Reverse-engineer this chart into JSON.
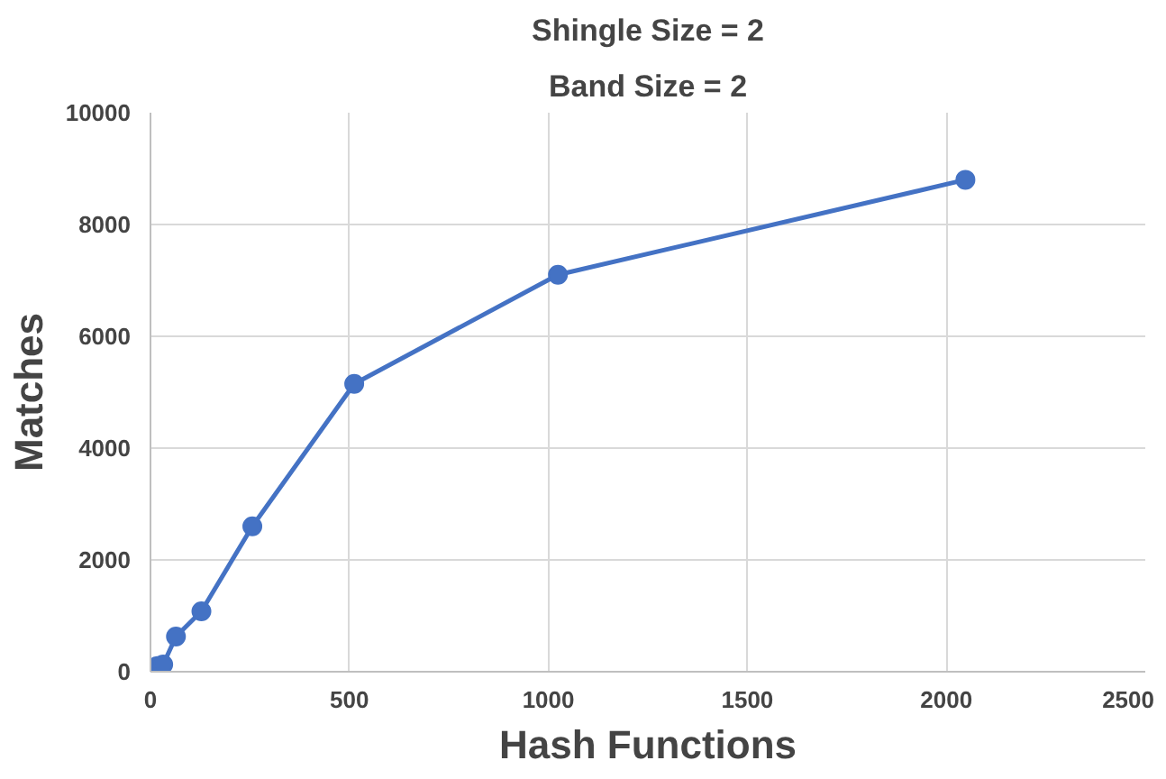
{
  "chart_data": {
    "type": "line",
    "title": "Shingle Size = 2",
    "subtitle": "Band Size = 2",
    "xlabel": "Hash Functions",
    "ylabel": "Matches",
    "x": [
      8,
      16,
      32,
      64,
      128,
      256,
      512,
      1024,
      2048
    ],
    "series": [
      {
        "color": "#4472c4",
        "values": [
          50,
          100,
          130,
          630,
          1080,
          2600,
          5150,
          7100,
          8800
        ]
      }
    ],
    "xlim": [
      0,
      2500
    ],
    "xticks": [
      0,
      500,
      1000,
      1500,
      2000,
      2500
    ],
    "ylim": [
      0,
      10000
    ],
    "yticks": [
      0,
      2000,
      4000,
      6000,
      8000,
      10000
    ],
    "grid": true,
    "marker": "circle",
    "line_style": "solid"
  }
}
